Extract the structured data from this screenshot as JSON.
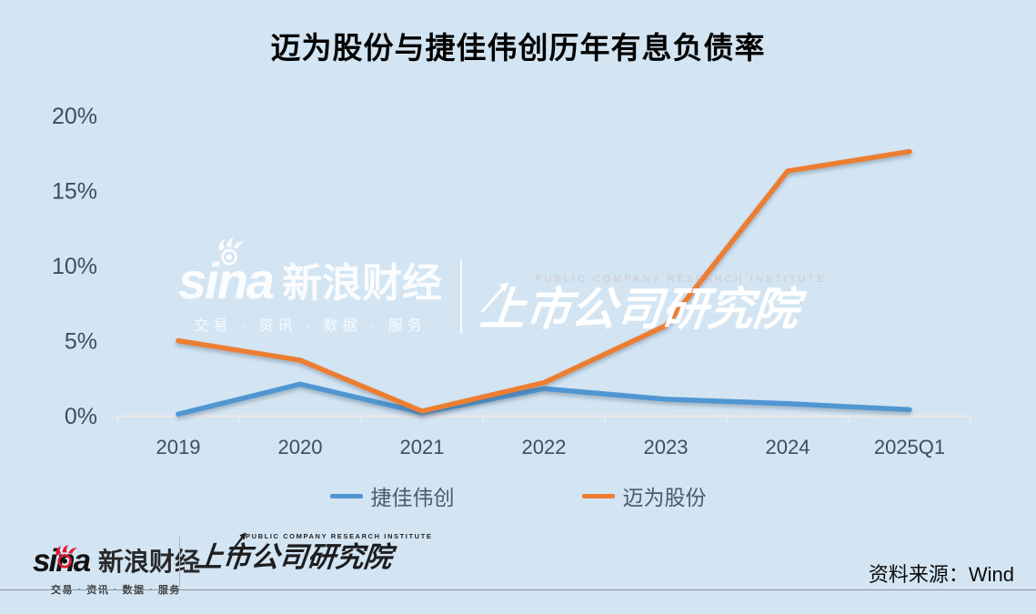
{
  "chart_data": {
    "type": "line",
    "title": "迈为股份与捷佳伟创历年有息负债率",
    "categories": [
      "2019",
      "2020",
      "2021",
      "2022",
      "2023",
      "2024",
      "2025Q1"
    ],
    "series": [
      {
        "name": "捷佳伟创",
        "color": "#4f96d2",
        "values": [
          0.1,
          2.1,
          0.2,
          1.8,
          1.1,
          0.8,
          0.4
        ]
      },
      {
        "name": "迈为股份",
        "color": "#ed7d31",
        "values": [
          5.0,
          3.7,
          0.3,
          2.2,
          6.0,
          16.3,
          17.6
        ]
      }
    ],
    "ylim": [
      0,
      20
    ],
    "yticks": [
      0,
      5,
      10,
      15,
      20
    ],
    "ytick_labels": [
      "0%",
      "5%",
      "10%",
      "15%",
      "20%"
    ],
    "xlabel": "",
    "ylabel": "",
    "grid": false,
    "legend_position": "bottom"
  },
  "watermark": {
    "sina_logo": "sina",
    "sina_brand": "新浪财经",
    "sina_slogan": "交易 · 资讯 · 数据 · 服务",
    "institute_caption": "PUBLIC COMPANY RESEARCH INSTITUTE",
    "institute_name": "上市公司研究院"
  },
  "footer": {
    "sina_logo": "sina",
    "sina_brand": "新浪财经",
    "sina_slogan": "交易 · 资讯 · 数据 · 服务",
    "institute_caption": "PUBLIC COMPANY RESEARCH INSTITUTE",
    "institute_name": "上市公司研究院",
    "source": "资料来源：Wind"
  },
  "colors": {
    "background": "#d3e5f3",
    "axis_label": "#3d4d63",
    "axis_line": "#f6e8e4",
    "legend_label": "#4a5b6e",
    "sina_red": "#e6162d"
  }
}
